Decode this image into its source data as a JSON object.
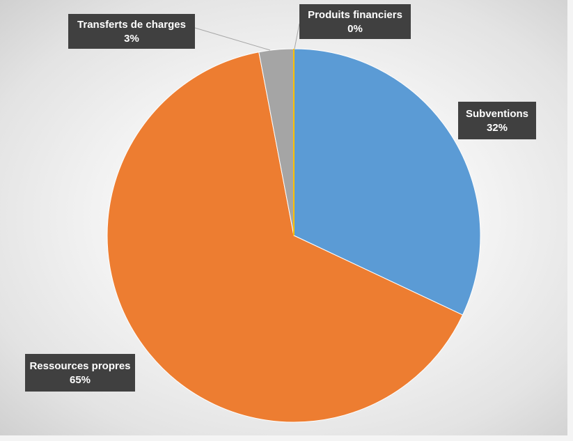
{
  "chart_data": {
    "type": "pie",
    "categories": [
      "Subventions",
      "Ressources propres",
      "Transferts de charges",
      "Produits financiers"
    ],
    "values": [
      32,
      65,
      3,
      0
    ],
    "percent_labels": [
      "32%",
      "65%",
      "3%",
      "0%"
    ],
    "colors": [
      "#5b9bd5",
      "#ed7d31",
      "#a5a5a5",
      "#ffc000"
    ],
    "label_box_color": "#404040",
    "start": "12 o'clock, clockwise",
    "legend": "none"
  }
}
